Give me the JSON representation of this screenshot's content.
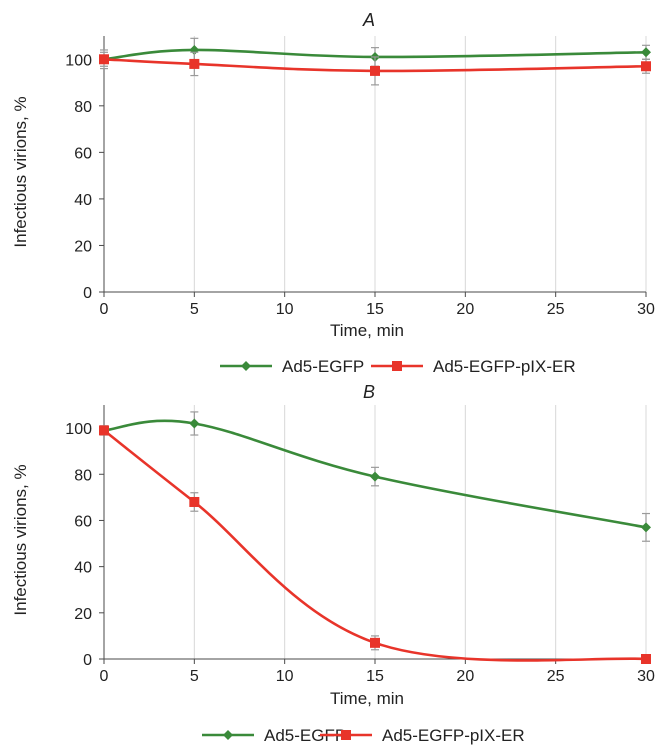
{
  "colors": {
    "green": "#3a8a3a",
    "red": "#e8342a",
    "grid": "#d8d8d8"
  },
  "chart_data": [
    {
      "type": "line",
      "title": "A",
      "xlabel": "Time, min",
      "ylabel": "Infectious virions, %",
      "x": [
        0,
        5,
        15,
        30
      ],
      "xlim": [
        0,
        30
      ],
      "ylim": [
        0,
        110
      ],
      "xticks": [
        0,
        5,
        10,
        15,
        20,
        25,
        30
      ],
      "yticks": [
        0,
        20,
        40,
        60,
        80,
        100
      ],
      "grid": "vertical",
      "legend": "bottom",
      "series": [
        {
          "name": "Ad5-EGFP",
          "color": "#3a8a3a",
          "marker": "diamond",
          "values": [
            100,
            104,
            101,
            103
          ],
          "errors": [
            4,
            5,
            4,
            3
          ]
        },
        {
          "name": "Ad5-EGFP-pIX-ER",
          "color": "#e8342a",
          "marker": "square",
          "values": [
            100,
            98,
            95,
            97
          ],
          "errors": [
            3,
            5,
            6,
            3
          ]
        }
      ]
    },
    {
      "type": "line",
      "title": "B",
      "xlabel": "Time, min",
      "ylabel": "Infectious virions, %",
      "x": [
        0,
        5,
        15,
        30
      ],
      "xlim": [
        0,
        30
      ],
      "ylim": [
        0,
        110
      ],
      "xticks": [
        0,
        5,
        10,
        15,
        20,
        25,
        30
      ],
      "yticks": [
        0,
        20,
        40,
        60,
        80,
        100
      ],
      "grid": "vertical",
      "legend": "bottom",
      "series": [
        {
          "name": "Ad5-EGFP",
          "color": "#3a8a3a",
          "marker": "diamond",
          "values": [
            99,
            102,
            79,
            57
          ],
          "errors": [
            2,
            5,
            4,
            6
          ]
        },
        {
          "name": "Ad5-EGFP-pIX-ER",
          "color": "#e8342a",
          "marker": "square",
          "values": [
            99,
            68,
            7,
            0
          ],
          "errors": [
            1,
            4,
            3,
            1
          ]
        }
      ]
    }
  ]
}
